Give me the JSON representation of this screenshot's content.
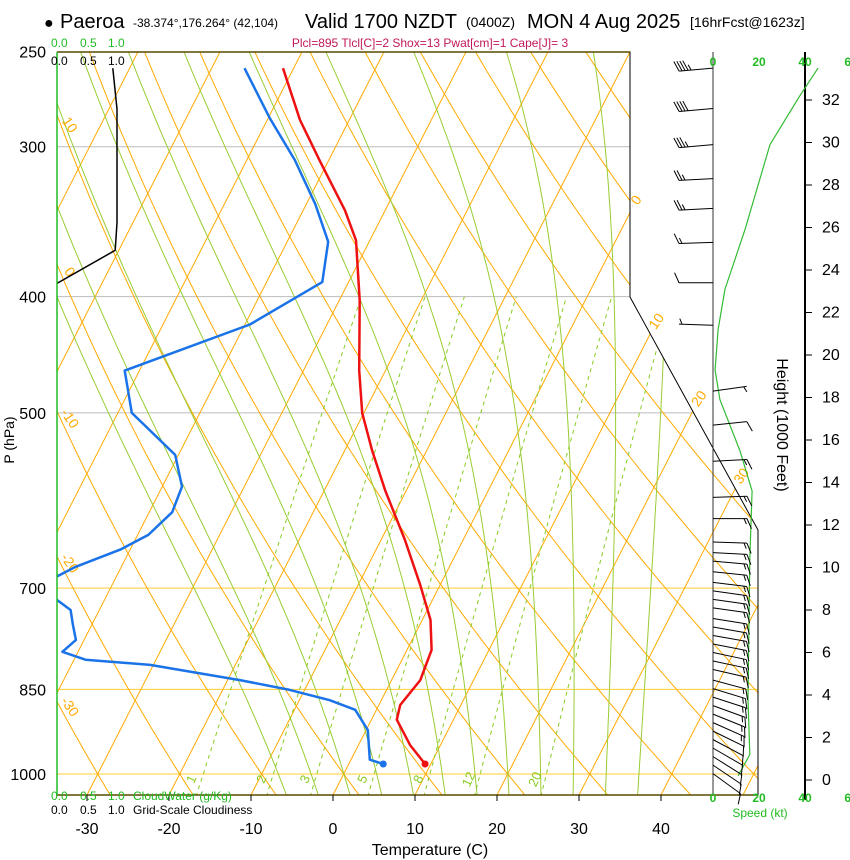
{
  "header": {
    "bullet": "●",
    "station": "Paeroa",
    "coords": "-38.374°,176.264° (42,104)",
    "valid": "Valid 1700 NZDT",
    "utc": "(0400Z)",
    "date": "MON 4 Aug 2025",
    "forecast": "[16hrFcst@1623z]"
  },
  "indices": "Plcl=895 Tlcl[C]=2 Shox=13 Pwat[cm]=1 Cape[J]= 3",
  "chart_data": {
    "type": "line",
    "subtype": "skew-t log-p",
    "title": "Valid 1700 NZDT (0400Z) MON 4 Aug 2025",
    "xlabel": "Temperature (C)",
    "ylabel": "P (hPa)",
    "ylim": [
      1000,
      250
    ],
    "pressure_ticks": [
      250,
      300,
      400,
      500,
      700,
      850,
      1000
    ],
    "temperature_ticks": [
      -30,
      -20,
      -10,
      0,
      10,
      20,
      30,
      40
    ],
    "temperature": {
      "p": [
        981,
        946,
        901,
        876,
        835,
        788,
        744,
        696,
        638,
        580,
        537,
        500,
        461,
        403,
        359,
        339,
        308,
        285,
        258
      ],
      "t": [
        9.3,
        6.3,
        3.1,
        2.6,
        3.5,
        3.0,
        1.0,
        -2.4,
        -7.1,
        -12.6,
        -16.7,
        -20.2,
        -23.2,
        -27.5,
        -31.7,
        -34.9,
        -41.1,
        -46.0,
        -51.3
      ]
    },
    "dewpoint": {
      "p": [
        981,
        973,
        919,
        884,
        868,
        851,
        835,
        811,
        803,
        791,
        773,
        751,
        730,
        716,
        690,
        672,
        650,
        632,
        605,
        576,
        542,
        500,
        461,
        422,
        389,
        360,
        335,
        308,
        284,
        258
      ],
      "td": [
        4.2,
        2.3,
        0.2,
        -2.6,
        -6.3,
        -11.8,
        -18.5,
        -30.4,
        -38.6,
        -41.9,
        -41.0,
        -42.3,
        -43.5,
        -45.8,
        -48.0,
        -45.6,
        -41.2,
        -38.7,
        -37.2,
        -37.6,
        -40.4,
        -48.3,
        -51.8,
        -39.4,
        -33.2,
        -35.0,
        -38.9,
        -44.1,
        -49.8,
        -56.0
      ]
    },
    "cloudiness": {
      "p": [
        258,
        279,
        347,
        366,
        390
      ],
      "fraction": [
        0.93,
        1.0,
        1.0,
        0.97,
        0.0
      ]
    },
    "surface": {
      "t": 9.3,
      "td": 4.2
    },
    "isotherm_labels": [
      0,
      10,
      20,
      30
    ],
    "dry_adiabat_labels": [
      10,
      0,
      -10,
      -20,
      -30
    ],
    "mixing_ratio_labels": [
      1,
      2,
      3,
      5,
      8,
      12,
      20
    ],
    "cloud_axis": {
      "ticks": [
        "0.0",
        "0.5",
        "1.0"
      ],
      "cloudwater_label": "CloudWater (g/Kg)",
      "cloudiness_label": "Grid-Scale Cloudiness"
    },
    "wind": {
      "speed_ticks": [
        0,
        20,
        40,
        60
      ],
      "speed_label": "Speed (kt)",
      "height_label": "Height (1000 Feet)",
      "height_ticks": [
        0,
        2,
        4,
        6,
        8,
        10,
        12,
        14,
        16,
        18,
        20,
        22,
        24,
        26,
        28,
        30,
        32
      ],
      "speed_profile": {
        "height_kft": [
          0.2,
          1.2,
          3.8,
          10.4,
          13.6,
          15.5,
          17.9,
          19.3,
          21.2,
          23.1,
          25.9,
          29.9,
          32.2,
          33.5
        ],
        "speed_kt": [
          10.9,
          16,
          15.2,
          16,
          17,
          11.7,
          3,
          0.9,
          2.2,
          5.2,
          13.9,
          24.8,
          37.8,
          45.7
        ]
      },
      "barbs": [
        {
          "h": 33.5,
          "dir": 265,
          "spd": 45
        },
        {
          "h": 31.6,
          "dir": 265,
          "spd": 40
        },
        {
          "h": 29.9,
          "dir": 265,
          "spd": 35
        },
        {
          "h": 28.3,
          "dir": 267,
          "spd": 25
        },
        {
          "h": 26.9,
          "dir": 267,
          "spd": 25
        },
        {
          "h": 25.3,
          "dir": 268,
          "spd": 15
        },
        {
          "h": 23.4,
          "dir": 270,
          "spd": 10
        },
        {
          "h": 21.4,
          "dir": 272,
          "spd": 5
        },
        {
          "h": 18.3,
          "dir": 82,
          "spd": 5
        },
        {
          "h": 16.7,
          "dir": 84,
          "spd": 10
        },
        {
          "h": 15.0,
          "dir": 87,
          "spd": 15
        },
        {
          "h": 13.3,
          "dir": 88,
          "spd": 15
        },
        {
          "h": 12.3,
          "dir": 90,
          "spd": 15
        },
        {
          "h": 11.2,
          "dir": 92,
          "spd": 15
        },
        {
          "h": 10.7,
          "dir": 93,
          "spd": 15
        },
        {
          "h": 10.3,
          "dir": 95,
          "spd": 15
        },
        {
          "h": 9.8,
          "dir": 96,
          "spd": 15
        },
        {
          "h": 9.3,
          "dir": 97,
          "spd": 15
        },
        {
          "h": 8.9,
          "dir": 98,
          "spd": 15
        },
        {
          "h": 8.5,
          "dir": 98,
          "spd": 15
        },
        {
          "h": 8.1,
          "dir": 98,
          "spd": 15
        },
        {
          "h": 7.6,
          "dir": 99,
          "spd": 15
        },
        {
          "h": 7.2,
          "dir": 100,
          "spd": 15
        },
        {
          "h": 6.8,
          "dir": 100,
          "spd": 15
        },
        {
          "h": 6.4,
          "dir": 101,
          "spd": 15
        },
        {
          "h": 6.0,
          "dir": 102,
          "spd": 15
        },
        {
          "h": 5.6,
          "dir": 102,
          "spd": 15
        },
        {
          "h": 5.2,
          "dir": 103,
          "spd": 15
        },
        {
          "h": 4.7,
          "dir": 105,
          "spd": 15
        },
        {
          "h": 4.3,
          "dir": 107,
          "spd": 15
        },
        {
          "h": 3.9,
          "dir": 108,
          "spd": 15
        },
        {
          "h": 3.5,
          "dir": 110,
          "spd": 15
        },
        {
          "h": 3.1,
          "dir": 112,
          "spd": 15
        },
        {
          "h": 2.7,
          "dir": 114,
          "spd": 15
        },
        {
          "h": 2.3,
          "dir": 116,
          "spd": 14
        },
        {
          "h": 1.9,
          "dir": 118,
          "spd": 13
        },
        {
          "h": 1.5,
          "dir": 120,
          "spd": 13
        },
        {
          "h": 1.1,
          "dir": 122,
          "spd": 12
        },
        {
          "h": 0.7,
          "dir": 124,
          "spd": 12
        },
        {
          "h": 0.3,
          "dir": 126,
          "spd": 11
        }
      ]
    },
    "colors": {
      "temperature": "#ee1111",
      "dewpoint": "#1a73e8",
      "isotherm": "#ffaa00",
      "moist_adiabat": "#99cc33",
      "mixing_ratio": "#88cc22",
      "wind_speed": "#33bb33",
      "indices": "#c2185b"
    }
  }
}
